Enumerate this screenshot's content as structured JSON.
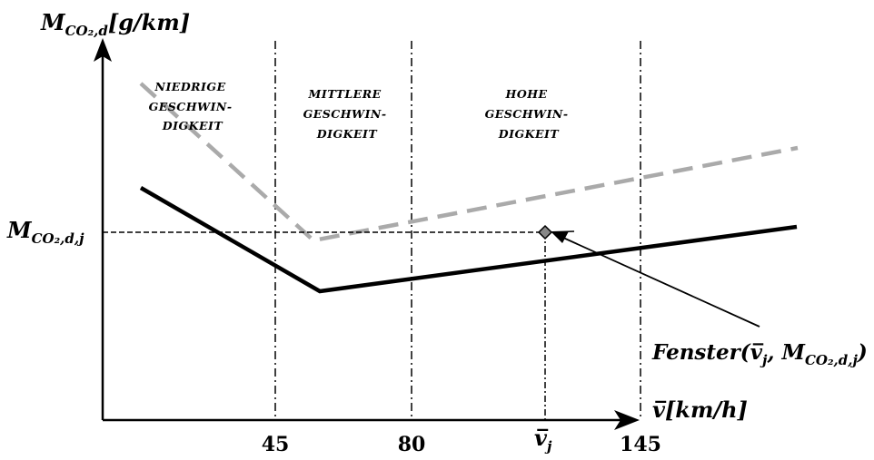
{
  "y_axis_label": {
    "main": "M",
    "sub": "CO₂,d",
    "unit": "[g/km]"
  },
  "x_axis_label": {
    "main": "v̅",
    "unit": "[km/h]"
  },
  "y_marker_label": {
    "main": "M",
    "sub": "CO₂,d,j"
  },
  "x_ticks": [
    "45",
    "80",
    "145"
  ],
  "x_marker_label": {
    "main": "v̅",
    "sub": "j"
  },
  "zones": [
    {
      "lines": [
        "NIEDRIGE",
        "GESCHWIN-",
        "DIGKEIT"
      ]
    },
    {
      "lines": [
        "MITTLERE",
        "GESCHWIN-",
        "DIGKEIT"
      ]
    },
    {
      "lines": [
        "HOHE",
        "GESCHWIN-",
        "DIGKEIT"
      ]
    }
  ],
  "annotation": {
    "prefix": "Fenster(",
    "v": "v̅",
    "v_sub": "j",
    "sep": ", M",
    "m_sub": "CO₂,d,j",
    "suffix": ")"
  },
  "colors": {
    "solid_curve": "#000000",
    "dashed_curve": "#aaaaaa",
    "guides": "#000000"
  }
}
